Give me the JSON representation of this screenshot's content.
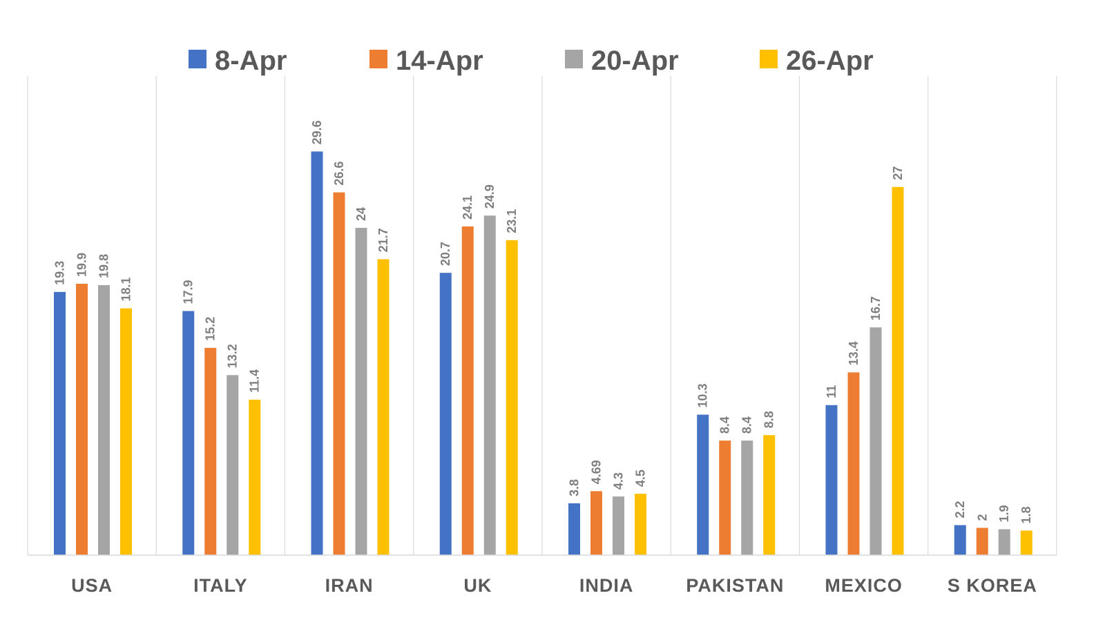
{
  "chart_data": {
    "type": "bar",
    "title": "",
    "xlabel": "",
    "ylabel": "",
    "ylim": [
      0,
      33
    ],
    "grid": "vertical separators between categories",
    "legend_position": "top",
    "categories": [
      "USA",
      "ITALY",
      "IRAN",
      "UK",
      "INDIA",
      "PAKISTAN",
      "MEXICO",
      "S KOREA"
    ],
    "series": [
      {
        "name": "8-Apr",
        "color": "#4472C4",
        "values": [
          19.3,
          17.9,
          29.6,
          20.7,
          3.8,
          10.3,
          11,
          2.2
        ],
        "labels": [
          "19.3",
          "17.9",
          "29.6",
          "20.7",
          "3.8",
          "10.3",
          "11",
          "2.2"
        ]
      },
      {
        "name": "14-Apr",
        "color": "#ED7D31",
        "values": [
          19.9,
          15.2,
          26.6,
          24.1,
          4.69,
          8.4,
          13.4,
          2
        ],
        "labels": [
          "19.9",
          "15.2",
          "26.6",
          "24.1",
          "4.69",
          "8.4",
          "13.4",
          "2"
        ]
      },
      {
        "name": "20-Apr",
        "color": "#A5A5A5",
        "values": [
          19.8,
          13.2,
          24,
          24.9,
          4.3,
          8.4,
          16.7,
          1.9
        ],
        "labels": [
          "19.8",
          "13.2",
          "24",
          "24.9",
          "4.3",
          "8.4",
          "16.7",
          "1.9"
        ]
      },
      {
        "name": "26-Apr",
        "color": "#FFC000",
        "values": [
          18.1,
          11.4,
          21.7,
          23.1,
          4.5,
          8.8,
          27,
          1.8
        ],
        "labels": [
          "18.1",
          "11.4",
          "21.7",
          "23.1",
          "4.5",
          "8.8",
          "27",
          "1.8"
        ]
      }
    ]
  },
  "colors": {
    "axis_line": "#D9D9D9",
    "gridline": "#D9D9D9",
    "label_text": "#595959",
    "data_label_text": "#7F7F7F"
  }
}
